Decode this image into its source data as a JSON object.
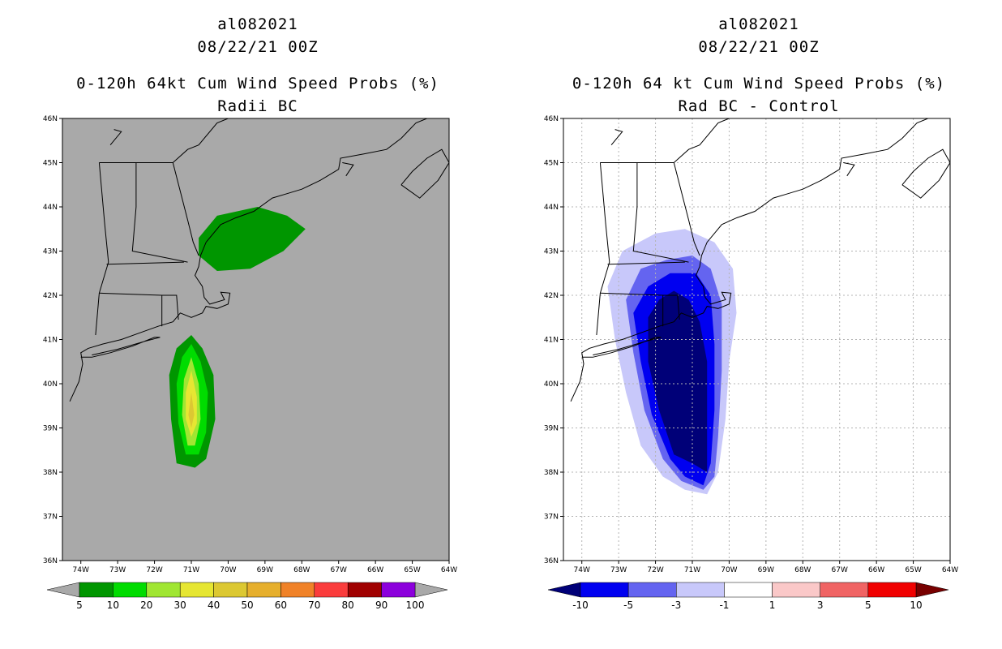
{
  "chart_data": [
    {
      "type": "heatmap",
      "storm_id": "al082021",
      "date": "08/22/21 00Z",
      "title": "0-120h 64kt Cum Wind Speed Probs (%)",
      "subtitle": "Radii BC",
      "background": "#a9a9a9",
      "x_ticks": [
        "74W",
        "73W",
        "72W",
        "71W",
        "70W",
        "69W",
        "68W",
        "67W",
        "66W",
        "65W",
        "64W"
      ],
      "y_ticks": [
        "36N",
        "37N",
        "38N",
        "39N",
        "40N",
        "41N",
        "42N",
        "43N",
        "44N",
        "45N",
        "46N"
      ],
      "xlim": [
        -74.5,
        -64.0
      ],
      "ylim": [
        36,
        46
      ],
      "grid": false,
      "colorbar": {
        "labels": [
          "5",
          "10",
          "20",
          "30",
          "40",
          "50",
          "60",
          "70",
          "80",
          "90",
          "100"
        ],
        "colors": [
          "#009600",
          "#00dc00",
          "#a0e632",
          "#e6e632",
          "#dcc832",
          "#e6af2d",
          "#f08228",
          "#fa3c3c",
          "#a00000",
          "#8c00dc"
        ],
        "cap_color": "#a9a9a9"
      },
      "regions": [
        {
          "name": "gulf-of-maine-5pct",
          "level": "5",
          "points": [
            [
              -70.8,
              43.3
            ],
            [
              -70.3,
              43.8
            ],
            [
              -69.2,
              44.0
            ],
            [
              -68.4,
              43.8
            ],
            [
              -67.9,
              43.5
            ],
            [
              -68.5,
              43.0
            ],
            [
              -69.4,
              42.6
            ],
            [
              -70.3,
              42.55
            ],
            [
              -70.8,
              42.9
            ]
          ]
        },
        {
          "name": "offshore-5pct",
          "level": "5",
          "points": [
            [
              -71.0,
              41.1
            ],
            [
              -70.7,
              40.8
            ],
            [
              -70.4,
              40.2
            ],
            [
              -70.35,
              39.2
            ],
            [
              -70.6,
              38.3
            ],
            [
              -70.9,
              38.1
            ],
            [
              -71.4,
              38.2
            ],
            [
              -71.55,
              39.2
            ],
            [
              -71.6,
              40.2
            ],
            [
              -71.4,
              40.8
            ]
          ]
        },
        {
          "name": "offshore-10pct",
          "level": "10",
          "points": [
            [
              -71.0,
              40.9
            ],
            [
              -70.75,
              40.5
            ],
            [
              -70.55,
              39.8
            ],
            [
              -70.6,
              38.9
            ],
            [
              -70.8,
              38.4
            ],
            [
              -71.15,
              38.4
            ],
            [
              -71.35,
              39.1
            ],
            [
              -71.4,
              40.0
            ],
            [
              -71.25,
              40.6
            ]
          ]
        },
        {
          "name": "offshore-20pct",
          "level": "20",
          "points": [
            [
              -71.0,
              40.6
            ],
            [
              -70.8,
              40.0
            ],
            [
              -70.75,
              39.2
            ],
            [
              -70.9,
              38.6
            ],
            [
              -71.1,
              38.6
            ],
            [
              -71.25,
              39.3
            ],
            [
              -71.2,
              40.1
            ]
          ]
        },
        {
          "name": "offshore-30pct",
          "level": "30",
          "points": [
            [
              -71.0,
              40.3
            ],
            [
              -70.85,
              39.7
            ],
            [
              -70.85,
              39.1
            ],
            [
              -71.0,
              38.8
            ],
            [
              -71.15,
              39.2
            ],
            [
              -71.15,
              39.8
            ]
          ]
        },
        {
          "name": "offshore-40pct",
          "level": "40",
          "points": [
            [
              -71.0,
              39.8
            ],
            [
              -70.92,
              39.3
            ],
            [
              -71.0,
              39.0
            ],
            [
              -71.08,
              39.3
            ]
          ]
        }
      ]
    },
    {
      "type": "heatmap",
      "storm_id": "al082021",
      "date": "08/22/21 00Z",
      "title": "0-120h 64 kt Cum Wind Speed Probs (%)",
      "subtitle": "Rad BC - Control",
      "background": "#ffffff",
      "x_ticks": [
        "74W",
        "73W",
        "72W",
        "71W",
        "70W",
        "69W",
        "68W",
        "67W",
        "66W",
        "65W",
        "64W"
      ],
      "y_ticks": [
        "36N",
        "37N",
        "38N",
        "39N",
        "40N",
        "41N",
        "42N",
        "43N",
        "44N",
        "45N",
        "46N"
      ],
      "xlim": [
        -74.5,
        -64.0
      ],
      "ylim": [
        36,
        46
      ],
      "grid": true,
      "colorbar": {
        "labels": [
          "-10",
          "-5",
          "-3",
          "-1",
          "1",
          "3",
          "5",
          "10"
        ],
        "colors": [
          "#0000f0",
          "#6464f0",
          "#c8c8fa",
          "#ffffff",
          "#fac8c8",
          "#f06464",
          "#f00000"
        ],
        "low_cap_color": "#000078",
        "high_cap_color": "#780000"
      },
      "regions": [
        {
          "name": "diff-minus1",
          "level": "-1",
          "points": [
            [
              -72.0,
              43.4
            ],
            [
              -71.2,
              43.5
            ],
            [
              -70.4,
              43.2
            ],
            [
              -69.9,
              42.6
            ],
            [
              -69.8,
              41.6
            ],
            [
              -70.0,
              40.5
            ],
            [
              -70.1,
              39.2
            ],
            [
              -70.3,
              38.0
            ],
            [
              -70.6,
              37.5
            ],
            [
              -71.2,
              37.6
            ],
            [
              -71.8,
              37.9
            ],
            [
              -72.4,
              38.6
            ],
            [
              -72.8,
              39.8
            ],
            [
              -73.1,
              41.0
            ],
            [
              -73.3,
              42.2
            ],
            [
              -72.9,
              43.0
            ]
          ]
        },
        {
          "name": "diff-minus3",
          "level": "-3",
          "points": [
            [
              -71.7,
              42.8
            ],
            [
              -71.0,
              42.9
            ],
            [
              -70.5,
              42.6
            ],
            [
              -70.2,
              41.8
            ],
            [
              -70.2,
              40.3
            ],
            [
              -70.3,
              38.8
            ],
            [
              -70.4,
              37.9
            ],
            [
              -70.7,
              37.6
            ],
            [
              -71.3,
              37.8
            ],
            [
              -71.8,
              38.3
            ],
            [
              -72.3,
              39.4
            ],
            [
              -72.6,
              40.7
            ],
            [
              -72.8,
              41.9
            ],
            [
              -72.4,
              42.6
            ]
          ]
        },
        {
          "name": "diff-minus5",
          "level": "-5",
          "points": [
            [
              -71.6,
              42.5
            ],
            [
              -70.9,
              42.5
            ],
            [
              -70.5,
              42.0
            ],
            [
              -70.4,
              40.9
            ],
            [
              -70.4,
              39.4
            ],
            [
              -70.5,
              38.2
            ],
            [
              -70.7,
              37.7
            ],
            [
              -71.2,
              37.9
            ],
            [
              -71.6,
              38.3
            ],
            [
              -72.1,
              39.3
            ],
            [
              -72.4,
              40.5
            ],
            [
              -72.6,
              41.6
            ],
            [
              -72.2,
              42.2
            ]
          ]
        },
        {
          "name": "diff-minus10",
          "level": "-10",
          "points": [
            [
              -71.5,
              42.1
            ],
            [
              -71.1,
              41.9
            ],
            [
              -70.8,
              41.4
            ],
            [
              -70.6,
              40.5
            ],
            [
              -70.6,
              39.2
            ],
            [
              -70.6,
              38.0
            ],
            [
              -71.0,
              38.2
            ],
            [
              -71.5,
              38.4
            ],
            [
              -71.9,
              39.4
            ],
            [
              -72.2,
              40.5
            ],
            [
              -72.2,
              41.5
            ],
            [
              -71.9,
              41.9
            ]
          ]
        }
      ]
    }
  ]
}
